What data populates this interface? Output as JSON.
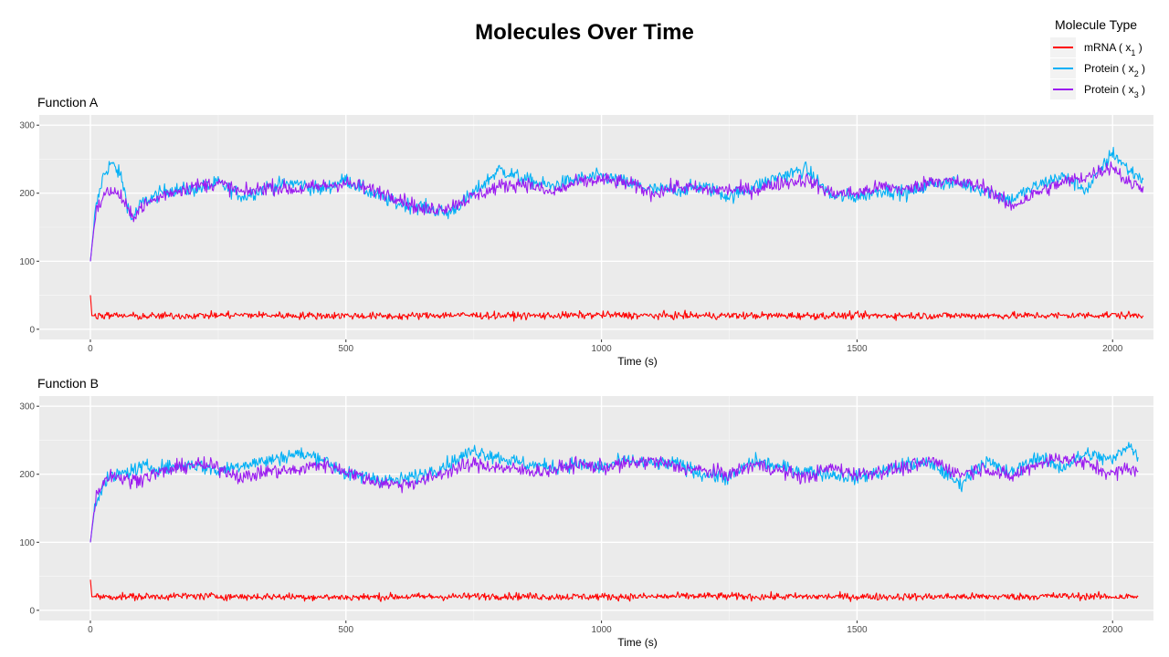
{
  "figure": {
    "title": "Molecules Over Time"
  },
  "legend": {
    "title": "Molecule Type",
    "entries": [
      {
        "series": "x1",
        "prefix": "mRNA ( x",
        "sub": "1",
        "suffix": " )",
        "color": "#ff0000"
      },
      {
        "series": "x2",
        "prefix": "Protein ( x",
        "sub": "2",
        "suffix": " )",
        "color": "#00b0f6"
      },
      {
        "series": "x3",
        "prefix": "Protein ( x",
        "sub": "3",
        "suffix": " )",
        "color": "#9b1bf0"
      }
    ]
  },
  "colors": {
    "panel_background": "#ebebeb",
    "grid_major": "#ffffff",
    "grid_minor": "#f5f5f5",
    "mRNA": "#ff0000",
    "protein_x2": "#00b0f6",
    "protein_x3": "#9b1bf0"
  },
  "chart_data": [
    {
      "type": "line",
      "title": "Function A",
      "xlabel": "Time (s)",
      "ylabel": "",
      "xlim": [
        -100,
        2080
      ],
      "ylim": [
        -15,
        315
      ],
      "x_ticks": [
        0,
        500,
        1000,
        1500,
        2000
      ],
      "y_ticks": [
        0,
        100,
        200,
        300
      ],
      "grid": true,
      "legend_placement": "top-right",
      "series": [
        {
          "name": "mRNA ( x1 )",
          "key": "x1",
          "color": "#ff0000",
          "x": [
            0,
            3,
            50,
            100,
            200,
            300,
            400,
            500,
            600,
            700,
            800,
            900,
            1000,
            1100,
            1200,
            1300,
            1400,
            1500,
            1600,
            1700,
            1800,
            1900,
            2000,
            2060
          ],
          "y": [
            50,
            20,
            20,
            19,
            20,
            21,
            20,
            20,
            19,
            21,
            20,
            20,
            21,
            20,
            20,
            20,
            20,
            20,
            20,
            20,
            20,
            20,
            21,
            20
          ]
        },
        {
          "name": "Protein ( x2 )",
          "key": "x2",
          "color": "#00b0f6",
          "x": [
            0,
            10,
            25,
            40,
            60,
            80,
            100,
            150,
            200,
            250,
            300,
            350,
            400,
            450,
            500,
            550,
            600,
            650,
            700,
            750,
            800,
            850,
            900,
            950,
            1000,
            1050,
            1100,
            1150,
            1200,
            1250,
            1300,
            1350,
            1400,
            1450,
            1500,
            1550,
            1600,
            1650,
            1700,
            1750,
            1800,
            1850,
            1900,
            1950,
            2000,
            2030,
            2060
          ],
          "y": [
            100,
            175,
            225,
            245,
            225,
            160,
            185,
            205,
            205,
            215,
            195,
            210,
            215,
            205,
            220,
            200,
            185,
            180,
            170,
            200,
            235,
            220,
            210,
            220,
            225,
            215,
            205,
            205,
            210,
            195,
            210,
            225,
            235,
            195,
            195,
            205,
            200,
            215,
            215,
            205,
            190,
            210,
            225,
            205,
            260,
            235,
            220
          ]
        },
        {
          "name": "Protein ( x3 )",
          "key": "x3",
          "color": "#9b1bf0",
          "x": [
            0,
            10,
            25,
            40,
            60,
            80,
            100,
            150,
            200,
            250,
            300,
            350,
            400,
            450,
            500,
            550,
            600,
            650,
            700,
            750,
            800,
            850,
            900,
            950,
            1000,
            1050,
            1100,
            1150,
            1200,
            1250,
            1300,
            1350,
            1400,
            1450,
            1500,
            1550,
            1600,
            1650,
            1700,
            1750,
            1800,
            1850,
            1900,
            1950,
            2000,
            2030,
            2060
          ],
          "y": [
            100,
            170,
            195,
            205,
            195,
            165,
            180,
            200,
            210,
            215,
            200,
            210,
            205,
            210,
            215,
            205,
            195,
            175,
            180,
            195,
            210,
            215,
            200,
            215,
            220,
            215,
            200,
            210,
            205,
            205,
            205,
            215,
            220,
            200,
            200,
            210,
            205,
            220,
            215,
            210,
            180,
            200,
            215,
            225,
            240,
            215,
            210
          ]
        }
      ]
    },
    {
      "type": "line",
      "title": "Function B",
      "xlabel": "Time (s)",
      "ylabel": "",
      "xlim": [
        -100,
        2080
      ],
      "ylim": [
        -15,
        315
      ],
      "x_ticks": [
        0,
        500,
        1000,
        1500,
        2000
      ],
      "y_ticks": [
        0,
        100,
        200,
        300
      ],
      "grid": true,
      "legend_placement": "top-right",
      "series": [
        {
          "name": "mRNA ( x1 )",
          "key": "x1",
          "color": "#ff0000",
          "x": [
            0,
            3,
            50,
            100,
            200,
            300,
            400,
            500,
            600,
            700,
            800,
            900,
            1000,
            1100,
            1200,
            1300,
            1400,
            1500,
            1600,
            1700,
            1800,
            1900,
            2000,
            2050
          ],
          "y": [
            45,
            20,
            20,
            20,
            21,
            20,
            20,
            19,
            20,
            20,
            21,
            20,
            20,
            20,
            21,
            20,
            20,
            20,
            20,
            20,
            20,
            21,
            20,
            20
          ]
        },
        {
          "name": "Protein ( x2 )",
          "key": "x2",
          "color": "#00b0f6",
          "x": [
            0,
            10,
            25,
            40,
            60,
            80,
            100,
            150,
            200,
            250,
            300,
            350,
            400,
            450,
            500,
            550,
            600,
            650,
            700,
            750,
            800,
            850,
            900,
            950,
            1000,
            1050,
            1100,
            1150,
            1200,
            1250,
            1300,
            1350,
            1400,
            1450,
            1500,
            1550,
            1600,
            1650,
            1700,
            1750,
            1800,
            1850,
            1900,
            1950,
            2000,
            2030,
            2050
          ],
          "y": [
            100,
            160,
            185,
            195,
            200,
            205,
            210,
            210,
            215,
            205,
            215,
            220,
            230,
            225,
            200,
            195,
            190,
            200,
            215,
            235,
            225,
            215,
            210,
            215,
            210,
            220,
            215,
            215,
            200,
            195,
            220,
            210,
            205,
            200,
            195,
            205,
            215,
            215,
            185,
            220,
            200,
            225,
            210,
            230,
            220,
            245,
            225
          ]
        },
        {
          "name": "Protein ( x3 )",
          "key": "x3",
          "color": "#9b1bf0",
          "x": [
            0,
            10,
            25,
            40,
            60,
            80,
            100,
            150,
            200,
            250,
            300,
            350,
            400,
            450,
            500,
            550,
            600,
            650,
            700,
            750,
            800,
            850,
            900,
            950,
            1000,
            1050,
            1100,
            1150,
            1200,
            1250,
            1300,
            1350,
            1400,
            1450,
            1500,
            1550,
            1600,
            1650,
            1700,
            1750,
            1800,
            1850,
            1900,
            1950,
            2000,
            2030,
            2050
          ],
          "y": [
            100,
            165,
            190,
            200,
            195,
            190,
            195,
            205,
            215,
            210,
            195,
            205,
            205,
            215,
            205,
            190,
            185,
            190,
            205,
            215,
            210,
            205,
            205,
            215,
            210,
            215,
            220,
            210,
            205,
            200,
            215,
            205,
            195,
            210,
            200,
            205,
            210,
            220,
            200,
            210,
            195,
            215,
            225,
            215,
            200,
            210,
            205
          ]
        }
      ]
    }
  ]
}
